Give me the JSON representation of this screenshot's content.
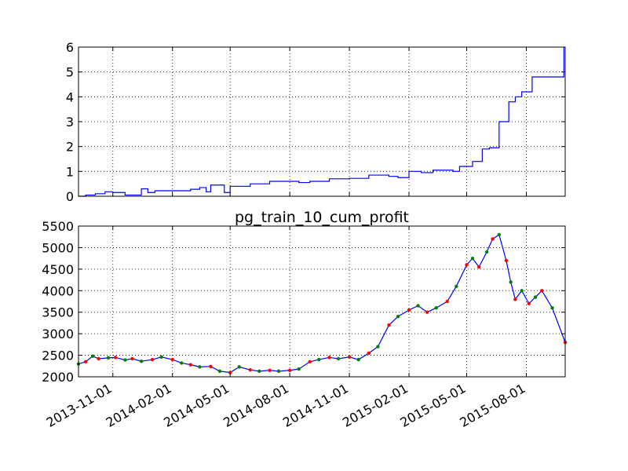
{
  "chart_data": [
    {
      "type": "line",
      "title": "",
      "xlabel": "",
      "ylabel": "",
      "x_range": [
        "2013-09-09",
        "2015-09-30"
      ],
      "ylim": [
        0,
        6
      ],
      "yticks": [
        0,
        1,
        2,
        3,
        4,
        5,
        6
      ],
      "grid": true,
      "series": [
        {
          "color": "#0000ff",
          "style": "step",
          "points": [
            [
              "2013-09-09",
              0.0
            ],
            [
              "2013-09-20",
              0.05
            ],
            [
              "2013-10-05",
              0.1
            ],
            [
              "2013-10-20",
              0.18
            ],
            [
              "2013-11-01",
              0.15
            ],
            [
              "2013-11-20",
              0.05
            ],
            [
              "2013-12-10",
              0.05
            ],
            [
              "2013-12-15",
              0.3
            ],
            [
              "2013-12-25",
              0.15
            ],
            [
              "2014-01-05",
              0.22
            ],
            [
              "2014-02-01",
              0.22
            ],
            [
              "2014-03-01",
              0.28
            ],
            [
              "2014-03-15",
              0.35
            ],
            [
              "2014-03-25",
              0.18
            ],
            [
              "2014-04-01",
              0.45
            ],
            [
              "2014-04-15",
              0.45
            ],
            [
              "2014-04-22",
              0.15
            ],
            [
              "2014-05-01",
              0.4
            ],
            [
              "2014-06-01",
              0.5
            ],
            [
              "2014-07-01",
              0.6
            ],
            [
              "2014-08-01",
              0.6
            ],
            [
              "2014-08-15",
              0.55
            ],
            [
              "2014-09-01",
              0.6
            ],
            [
              "2014-10-01",
              0.7
            ],
            [
              "2014-11-01",
              0.72
            ],
            [
              "2014-12-01",
              0.85
            ],
            [
              "2015-01-01",
              0.8
            ],
            [
              "2015-01-15",
              0.75
            ],
            [
              "2015-02-01",
              1.0
            ],
            [
              "2015-02-20",
              0.95
            ],
            [
              "2015-03-10",
              1.05
            ],
            [
              "2015-04-10",
              1.0
            ],
            [
              "2015-04-20",
              1.2
            ],
            [
              "2015-05-10",
              1.4
            ],
            [
              "2015-05-25",
              1.9
            ],
            [
              "2015-06-05",
              1.95
            ],
            [
              "2015-06-20",
              3.0
            ],
            [
              "2015-07-05",
              3.8
            ],
            [
              "2015-07-15",
              4.0
            ],
            [
              "2015-07-25",
              4.2
            ],
            [
              "2015-08-10",
              4.8
            ],
            [
              "2015-09-20",
              4.8
            ],
            [
              "2015-09-28",
              6.0
            ]
          ]
        }
      ]
    },
    {
      "type": "line",
      "title": "pg_train_10_cum_profit",
      "xlabel": "",
      "ylabel": "",
      "x_range": [
        "2013-09-09",
        "2015-09-30"
      ],
      "ylim": [
        2000,
        5500
      ],
      "yticks": [
        2000,
        2500,
        3000,
        3500,
        4000,
        4500,
        5000,
        5500
      ],
      "xticks": [
        "2013-11-01",
        "2014-02-01",
        "2014-05-01",
        "2014-08-01",
        "2014-11-01",
        "2015-02-01",
        "2015-05-01",
        "2015-08-01"
      ],
      "grid": true,
      "line_color": "#0000ff",
      "marker_colors": [
        "#008000",
        "#ff0000"
      ],
      "points": [
        [
          "2013-09-09",
          2300
        ],
        [
          "2013-09-20",
          2350
        ],
        [
          "2013-10-01",
          2480
        ],
        [
          "2013-10-10",
          2420
        ],
        [
          "2013-10-25",
          2440
        ],
        [
          "2013-11-05",
          2450
        ],
        [
          "2013-11-20",
          2390
        ],
        [
          "2013-12-01",
          2420
        ],
        [
          "2013-12-15",
          2360
        ],
        [
          "2014-01-01",
          2400
        ],
        [
          "2014-01-15",
          2460
        ],
        [
          "2014-02-01",
          2400
        ],
        [
          "2014-02-15",
          2320
        ],
        [
          "2014-03-01",
          2280
        ],
        [
          "2014-03-15",
          2230
        ],
        [
          "2014-04-01",
          2240
        ],
        [
          "2014-04-15",
          2130
        ],
        [
          "2014-05-01",
          2100
        ],
        [
          "2014-05-15",
          2230
        ],
        [
          "2014-06-01",
          2160
        ],
        [
          "2014-06-15",
          2130
        ],
        [
          "2014-07-01",
          2150
        ],
        [
          "2014-07-15",
          2130
        ],
        [
          "2014-08-01",
          2150
        ],
        [
          "2014-08-15",
          2180
        ],
        [
          "2014-09-01",
          2350
        ],
        [
          "2014-09-15",
          2400
        ],
        [
          "2014-10-01",
          2450
        ],
        [
          "2014-10-15",
          2420
        ],
        [
          "2014-11-01",
          2460
        ],
        [
          "2014-11-15",
          2400
        ],
        [
          "2014-12-01",
          2550
        ],
        [
          "2014-12-15",
          2700
        ],
        [
          "2015-01-01",
          3200
        ],
        [
          "2015-01-15",
          3400
        ],
        [
          "2015-02-01",
          3550
        ],
        [
          "2015-02-15",
          3650
        ],
        [
          "2015-03-01",
          3500
        ],
        [
          "2015-03-15",
          3600
        ],
        [
          "2015-04-01",
          3750
        ],
        [
          "2015-04-15",
          4100
        ],
        [
          "2015-05-01",
          4600
        ],
        [
          "2015-05-10",
          4750
        ],
        [
          "2015-05-20",
          4550
        ],
        [
          "2015-06-01",
          4900
        ],
        [
          "2015-06-10",
          5200
        ],
        [
          "2015-06-20",
          5300
        ],
        [
          "2015-07-01",
          4700
        ],
        [
          "2015-07-08",
          4200
        ],
        [
          "2015-07-15",
          3800
        ],
        [
          "2015-07-25",
          4000
        ],
        [
          "2015-08-05",
          3700
        ],
        [
          "2015-08-15",
          3850
        ],
        [
          "2015-08-25",
          4000
        ],
        [
          "2015-09-10",
          3600
        ],
        [
          "2015-09-30",
          2800
        ]
      ]
    }
  ]
}
